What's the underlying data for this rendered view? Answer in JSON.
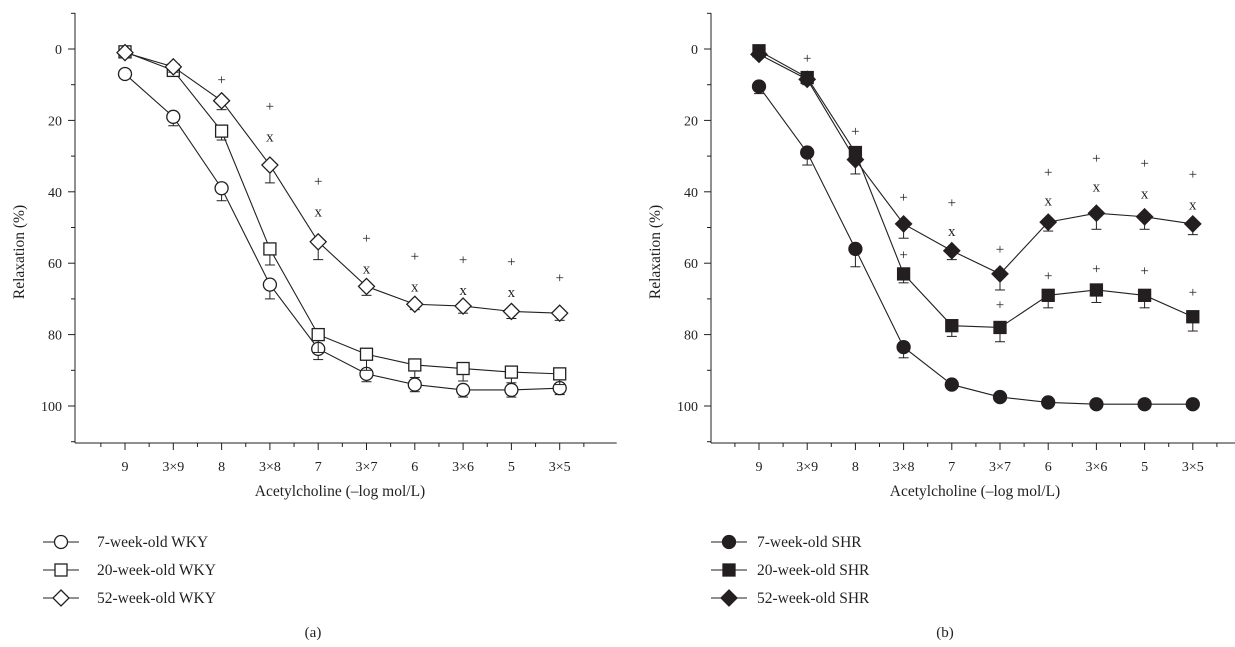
{
  "chart_data": [
    {
      "type": "line",
      "panel_label": "(a)",
      "xlabel": "Acetylcholine (–log mol/L)",
      "ylabel": "Relaxation (%)",
      "categories": [
        "9",
        "3×9",
        "8",
        "3×8",
        "7",
        "3×7",
        "6",
        "3×6",
        "5",
        "3×5"
      ],
      "yticks": [
        "0",
        "20",
        "40",
        "60",
        "80",
        "100"
      ],
      "ylim": [
        -11,
        110
      ],
      "y_inverted": true,
      "grid": false,
      "legend_position": "bottom-left",
      "series": [
        {
          "name": "7-week-old WKY",
          "marker": "circle-open",
          "values": [
            7,
            19,
            39,
            66,
            84,
            91,
            94,
            95.5,
            95.5,
            95
          ],
          "errors": [
            1.2,
            2.5,
            3.5,
            4,
            3,
            2.2,
            2,
            2,
            2,
            1.8
          ]
        },
        {
          "name": "20-week-old WKY",
          "marker": "square-open",
          "values": [
            0.8,
            6,
            23,
            56,
            80,
            85.5,
            88.5,
            89.5,
            90.5,
            91
          ],
          "errors": [
            0.8,
            1.5,
            2.5,
            4.5,
            5,
            4.5,
            3.5,
            3.5,
            3,
            3
          ]
        },
        {
          "name": "52-week-old WKY",
          "marker": "diamond-open",
          "values": [
            1,
            5,
            14.5,
            32.5,
            54,
            66.5,
            71.5,
            72,
            73.5,
            74
          ],
          "errors": [
            1,
            1.5,
            2.5,
            5,
            5,
            2.5,
            1.5,
            2,
            2,
            2
          ]
        }
      ],
      "annotations": [
        {
          "category": "8",
          "y": 8.5,
          "text": "+"
        },
        {
          "category": "3×8",
          "y": 16,
          "text": "+"
        },
        {
          "category": "3×8",
          "y": 24.5,
          "text": "x"
        },
        {
          "category": "7",
          "y": 37,
          "text": "+"
        },
        {
          "category": "7",
          "y": 45.5,
          "text": "x"
        },
        {
          "category": "3×7",
          "y": 53,
          "text": "+"
        },
        {
          "category": "3×7",
          "y": 61.5,
          "text": "x"
        },
        {
          "category": "6",
          "y": 58,
          "text": "+"
        },
        {
          "category": "6",
          "y": 66.5,
          "text": "x"
        },
        {
          "category": "3×6",
          "y": 59,
          "text": "+"
        },
        {
          "category": "3×6",
          "y": 67.5,
          "text": "x"
        },
        {
          "category": "5",
          "y": 59.5,
          "text": "+"
        },
        {
          "category": "5",
          "y": 68,
          "text": "x"
        },
        {
          "category": "3×5",
          "y": 64,
          "text": "+"
        }
      ]
    },
    {
      "type": "line",
      "panel_label": "(b)",
      "xlabel": "Acetylcholine (–log mol/L)",
      "ylabel": "Relaxation (%)",
      "categories": [
        "9",
        "3×9",
        "8",
        "3×8",
        "7",
        "3×7",
        "6",
        "3×6",
        "5",
        "3×5"
      ],
      "yticks": [
        "0",
        "20",
        "40",
        "60",
        "80",
        "100"
      ],
      "ylim": [
        -11,
        110
      ],
      "y_inverted": true,
      "grid": false,
      "legend_position": "bottom-left",
      "series": [
        {
          "name": "7-week-old SHR",
          "marker": "circle-filled",
          "values": [
            10.5,
            29,
            56,
            83.5,
            94,
            97.5,
            99,
            99.5,
            99.5,
            99.5
          ],
          "errors": [
            2,
            3.5,
            5,
            3,
            1,
            0.8,
            0.8,
            0.5,
            0.5,
            0.5
          ]
        },
        {
          "name": "20-week-old SHR",
          "marker": "square-filled",
          "values": [
            0.5,
            8,
            29,
            63,
            77.5,
            78,
            69,
            67.5,
            69,
            75
          ],
          "errors": [
            0.5,
            1.5,
            2,
            2.5,
            3,
            4,
            3.5,
            3.5,
            3.5,
            4
          ]
        },
        {
          "name": "52-week-old SHR",
          "marker": "diamond-filled",
          "values": [
            1.5,
            8.5,
            31,
            49,
            56.5,
            63,
            48.5,
            46,
            47,
            49
          ],
          "errors": [
            1,
            1.5,
            4,
            4,
            2.5,
            4.5,
            2.5,
            4.5,
            3.5,
            3
          ]
        }
      ],
      "annotations": [
        {
          "category": "3×9",
          "y": 2.5,
          "text": "+"
        },
        {
          "category": "8",
          "y": 23,
          "text": "+"
        },
        {
          "category": "3×8",
          "y": 41.5,
          "text": "+"
        },
        {
          "category": "3×8",
          "y": 57.5,
          "text": "+"
        },
        {
          "category": "7",
          "y": 43,
          "text": "+"
        },
        {
          "category": "7",
          "y": 51,
          "text": "x"
        },
        {
          "category": "3×7",
          "y": 56,
          "text": "+"
        },
        {
          "category": "3×7",
          "y": 71.5,
          "text": "+"
        },
        {
          "category": "6",
          "y": 34.5,
          "text": "+"
        },
        {
          "category": "6",
          "y": 42.5,
          "text": "x"
        },
        {
          "category": "6",
          "y": 63.5,
          "text": "+"
        },
        {
          "category": "3×6",
          "y": 30.5,
          "text": "+"
        },
        {
          "category": "3×6",
          "y": 38.5,
          "text": "x"
        },
        {
          "category": "3×6",
          "y": 61.5,
          "text": "+"
        },
        {
          "category": "5",
          "y": 32,
          "text": "+"
        },
        {
          "category": "5",
          "y": 40.5,
          "text": "x"
        },
        {
          "category": "5",
          "y": 62,
          "text": "+"
        },
        {
          "category": "3×5",
          "y": 35,
          "text": "+"
        },
        {
          "category": "3×5",
          "y": 43.5,
          "text": "x"
        },
        {
          "category": "3×5",
          "y": 68,
          "text": "+"
        }
      ]
    }
  ]
}
